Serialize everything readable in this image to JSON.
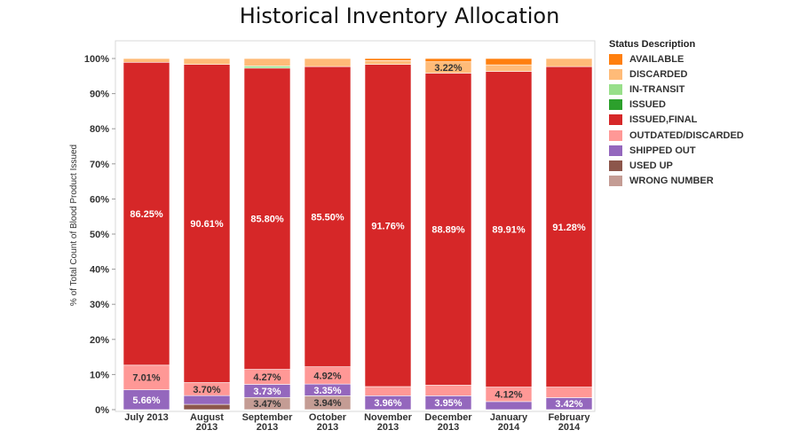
{
  "chart_data": {
    "type": "bar",
    "stacked": true,
    "normalized": true,
    "title": "Historical Inventory Allocation",
    "ylabel": "% of Total Count of Blood Product Issued",
    "xlabel": "",
    "ylim": [
      0,
      100
    ],
    "yticks": [
      "0%",
      "10%",
      "20%",
      "30%",
      "40%",
      "50%",
      "60%",
      "70%",
      "80%",
      "90%",
      "100%"
    ],
    "grid": false,
    "legend_position": "right",
    "legend_title": "Status Description",
    "categories": [
      [
        "July 2013"
      ],
      [
        "August",
        "2013"
      ],
      [
        "September",
        "2013"
      ],
      [
        "October",
        "2013"
      ],
      [
        "November",
        "2013"
      ],
      [
        "December",
        "2013"
      ],
      [
        "January",
        "2014"
      ],
      [
        "February",
        "2014"
      ]
    ],
    "series": [
      {
        "name": "WRONG NUMBER",
        "color": "#c49c94",
        "values": [
          0,
          0,
          3.47,
          3.94,
          0,
          0,
          0,
          0
        ]
      },
      {
        "name": "USED UP",
        "color": "#8c564b",
        "values": [
          0,
          1.5,
          0,
          0,
          0,
          0,
          0,
          0
        ]
      },
      {
        "name": "SHIPPED OUT",
        "color": "#9467bd",
        "values": [
          5.66,
          2.5,
          3.73,
          3.35,
          3.96,
          3.95,
          2.3,
          3.42
        ]
      },
      {
        "name": "OUTDATED/DISCARDED",
        "color": "#ff9896",
        "values": [
          7.01,
          3.7,
          4.27,
          4.92,
          2.6,
          3.0,
          4.12,
          3.0
        ]
      },
      {
        "name": "ISSUED,FINAL",
        "color": "#d62728",
        "values": [
          86.25,
          90.61,
          85.8,
          85.5,
          91.76,
          88.89,
          89.91,
          91.28
        ]
      },
      {
        "name": "ISSUED",
        "color": "#2ca02c",
        "values": [
          0,
          0,
          0,
          0,
          0,
          0,
          0,
          0
        ]
      },
      {
        "name": "IN-TRANSIT",
        "color": "#98df8a",
        "values": [
          0,
          0,
          0.6,
          0,
          0,
          0,
          0,
          0
        ]
      },
      {
        "name": "DISCARDED",
        "color": "#ffbb78",
        "values": [
          1.08,
          1.69,
          2.13,
          2.29,
          1.1,
          3.22,
          1.87,
          2.3
        ]
      },
      {
        "name": "AVAILABLE",
        "color": "#ff7f0e",
        "values": [
          0,
          0,
          0,
          0,
          0.58,
          0.94,
          1.8,
          0
        ]
      }
    ],
    "legend_order": [
      "AVAILABLE",
      "DISCARDED",
      "IN-TRANSIT",
      "ISSUED",
      "ISSUED,FINAL",
      "OUTDATED/DISCARDED",
      "SHIPPED OUT",
      "USED UP",
      "WRONG NUMBER"
    ],
    "data_labels": [
      {
        "series": "SHIPPED OUT",
        "bar": 0,
        "text": "5.66%"
      },
      {
        "series": "OUTDATED/DISCARDED",
        "bar": 0,
        "text": "7.01%"
      },
      {
        "series": "ISSUED,FINAL",
        "bar": 0,
        "text": "86.25%"
      },
      {
        "series": "OUTDATED/DISCARDED",
        "bar": 1,
        "text": "3.70%"
      },
      {
        "series": "ISSUED,FINAL",
        "bar": 1,
        "text": "90.61%"
      },
      {
        "series": "WRONG NUMBER",
        "bar": 2,
        "text": "3.47%"
      },
      {
        "series": "SHIPPED OUT",
        "bar": 2,
        "text": "3.73%"
      },
      {
        "series": "OUTDATED/DISCARDED",
        "bar": 2,
        "text": "4.27%"
      },
      {
        "series": "ISSUED,FINAL",
        "bar": 2,
        "text": "85.80%"
      },
      {
        "series": "WRONG NUMBER",
        "bar": 3,
        "text": "3.94%"
      },
      {
        "series": "SHIPPED OUT",
        "bar": 3,
        "text": "3.35%"
      },
      {
        "series": "OUTDATED/DISCARDED",
        "bar": 3,
        "text": "4.92%"
      },
      {
        "series": "ISSUED,FINAL",
        "bar": 3,
        "text": "85.50%"
      },
      {
        "series": "SHIPPED OUT",
        "bar": 4,
        "text": "3.96%"
      },
      {
        "series": "ISSUED,FINAL",
        "bar": 4,
        "text": "91.76%"
      },
      {
        "series": "SHIPPED OUT",
        "bar": 5,
        "text": "3.95%"
      },
      {
        "series": "ISSUED,FINAL",
        "bar": 5,
        "text": "88.89%"
      },
      {
        "series": "DISCARDED",
        "bar": 5,
        "text": "3.22%"
      },
      {
        "series": "OUTDATED/DISCARDED",
        "bar": 6,
        "text": "4.12%"
      },
      {
        "series": "ISSUED,FINAL",
        "bar": 6,
        "text": "89.91%"
      },
      {
        "series": "SHIPPED OUT",
        "bar": 7,
        "text": "3.42%"
      },
      {
        "series": "ISSUED,FINAL",
        "bar": 7,
        "text": "91.28%"
      }
    ]
  }
}
